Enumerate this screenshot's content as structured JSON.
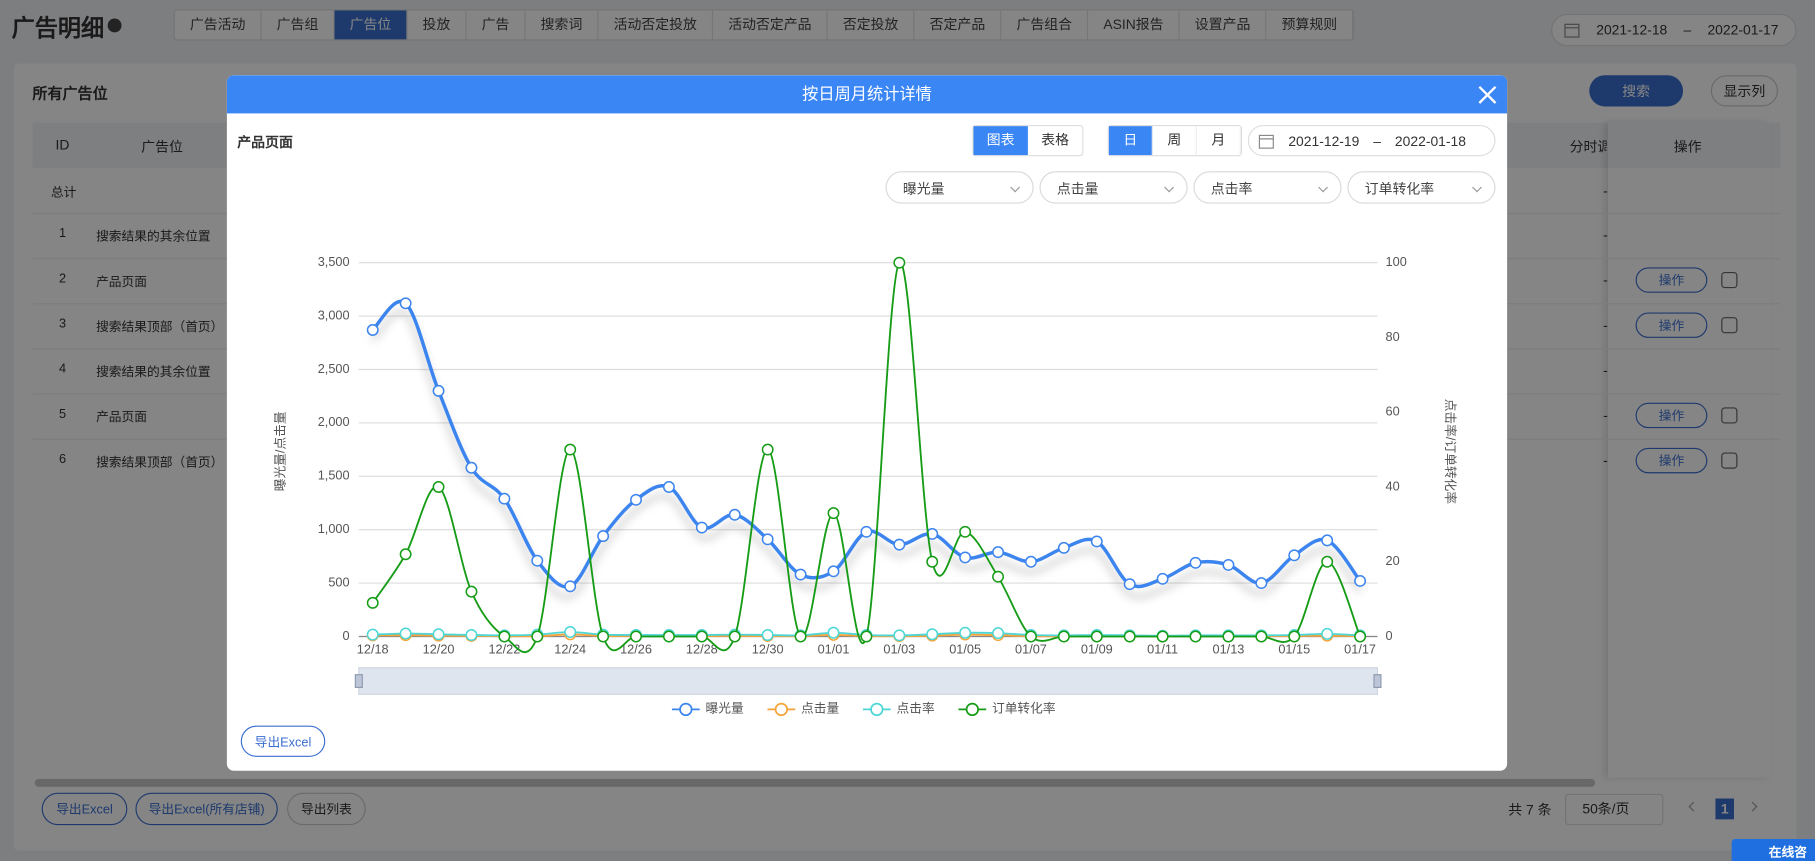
{
  "header": {
    "title": "广告明细",
    "tabs": [
      "广告活动",
      "广告组",
      "广告位",
      "投放",
      "广告",
      "搜索词",
      "活动否定投放",
      "活动否定产品",
      "否定投放",
      "否定产品",
      "广告组合",
      "ASIN报告",
      "设置产品",
      "预算规则"
    ],
    "date_start": "2021-12-18",
    "date_separator": "–",
    "date_end": "2022-01-17"
  },
  "panel": {
    "title": "所有广告位",
    "search": "搜索",
    "columns_button": "显示列"
  },
  "table": {
    "headers": [
      "ID",
      "广告位",
      "分时调价",
      "操作"
    ],
    "total": "总计",
    "rows": [
      [
        1,
        "搜索结果的其余位置"
      ],
      [
        2,
        "产品页面"
      ],
      [
        3,
        "搜索结果顶部（首页）"
      ],
      [
        4,
        "搜索结果的其余位置"
      ],
      [
        5,
        "产品页面"
      ],
      [
        6,
        "搜索结果顶部（首页）"
      ]
    ],
    "dash": "-",
    "action": "操作"
  },
  "footer": {
    "buttons": [
      "导出Excel",
      "导出Excel(所有店铺)",
      "导出列表"
    ],
    "total": "共 7 条",
    "page_size": "50条/页",
    "page": 1
  },
  "chat": "在线咨询",
  "modal": {
    "title": "按日周月统计详情",
    "subtitle": "产品页面",
    "views": [
      "图表",
      "表格"
    ],
    "periods": [
      "日",
      "周",
      "月"
    ],
    "date_start": "2021-12-19",
    "date_separator": "–",
    "date_end": "2022-01-18",
    "selects": [
      "曝光量",
      "点击量",
      "点击率",
      "订单转化率"
    ],
    "export": "导出Excel"
  },
  "chart_data": {
    "type": "line",
    "smooth": true,
    "y_label": "曝光量/点击量",
    "y2_label": "点击率/订单转化率",
    "categories": [
      "12/18",
      null,
      "12/20",
      null,
      "12/22",
      null,
      "12/24",
      null,
      "12/26",
      null,
      "12/28",
      null,
      "12/30",
      null,
      "01/01",
      null,
      "01/03",
      null,
      "01/05",
      null,
      "01/07",
      null,
      "01/09",
      null,
      "01/11",
      null,
      "01/13",
      null,
      "01/15",
      null,
      "01/17"
    ],
    "ylim": [
      0,
      3500
    ],
    "yticks": [
      0,
      500,
      {
        "value": 1000,
        "label": "1,000"
      },
      {
        "value": 1500,
        "label": "1,500"
      },
      {
        "value": 2000,
        "label": "2,000"
      },
      {
        "value": 2500,
        "label": "2,500"
      },
      {
        "value": 3000,
        "label": "3,000"
      },
      {
        "value": 3500,
        "label": "3,500"
      }
    ],
    "y2lim": [
      0,
      100
    ],
    "y2ticks": [
      0,
      20,
      40,
      60,
      80,
      100
    ],
    "grid": true,
    "legend": "bottom",
    "series": [
      {
        "name": "曝光量",
        "color": "#3d85ee",
        "values": [
          2870,
          3120,
          2300,
          1580,
          1290,
          710,
          470,
          940,
          1280,
          1400,
          1020,
          1140,
          910,
          580,
          610,
          980,
          860,
          960,
          740,
          790,
          700,
          830,
          890,
          490,
          540,
          690,
          670,
          500,
          760,
          900,
          520
        ]
      },
      {
        "name": "点击量",
        "color": "#f5a33a",
        "values": [
          10,
          12,
          8,
          5,
          3,
          2,
          20,
          5,
          6,
          6,
          4,
          5,
          4,
          3,
          15,
          4,
          3,
          8,
          18,
          12,
          3,
          2,
          4,
          2,
          1,
          3,
          3,
          2,
          4,
          8,
          3
        ]
      },
      {
        "name": "点击率",
        "color": "#4dd6d6",
        "axis": "y2",
        "values": [
          0.5,
          0.8,
          0.6,
          0.4,
          0.3,
          0.5,
          1.2,
          0.5,
          0.4,
          0.4,
          0.4,
          0.5,
          0.4,
          0.3,
          1,
          0.4,
          0.3,
          0.6,
          1,
          0.9,
          0.4,
          0.3,
          0.4,
          0.3,
          0.2,
          0.3,
          0.3,
          0.3,
          0.4,
          0.7,
          0.3
        ]
      },
      {
        "name": "订单转化率",
        "color": "#169c16",
        "axis": "y2",
        "values": [
          9,
          22,
          40,
          12,
          0,
          0,
          50,
          0,
          0,
          0,
          0,
          0,
          50,
          0,
          33,
          0,
          100,
          20,
          28,
          16,
          0,
          0,
          0,
          0,
          0,
          0,
          0,
          0,
          0,
          20,
          0
        ]
      }
    ]
  }
}
